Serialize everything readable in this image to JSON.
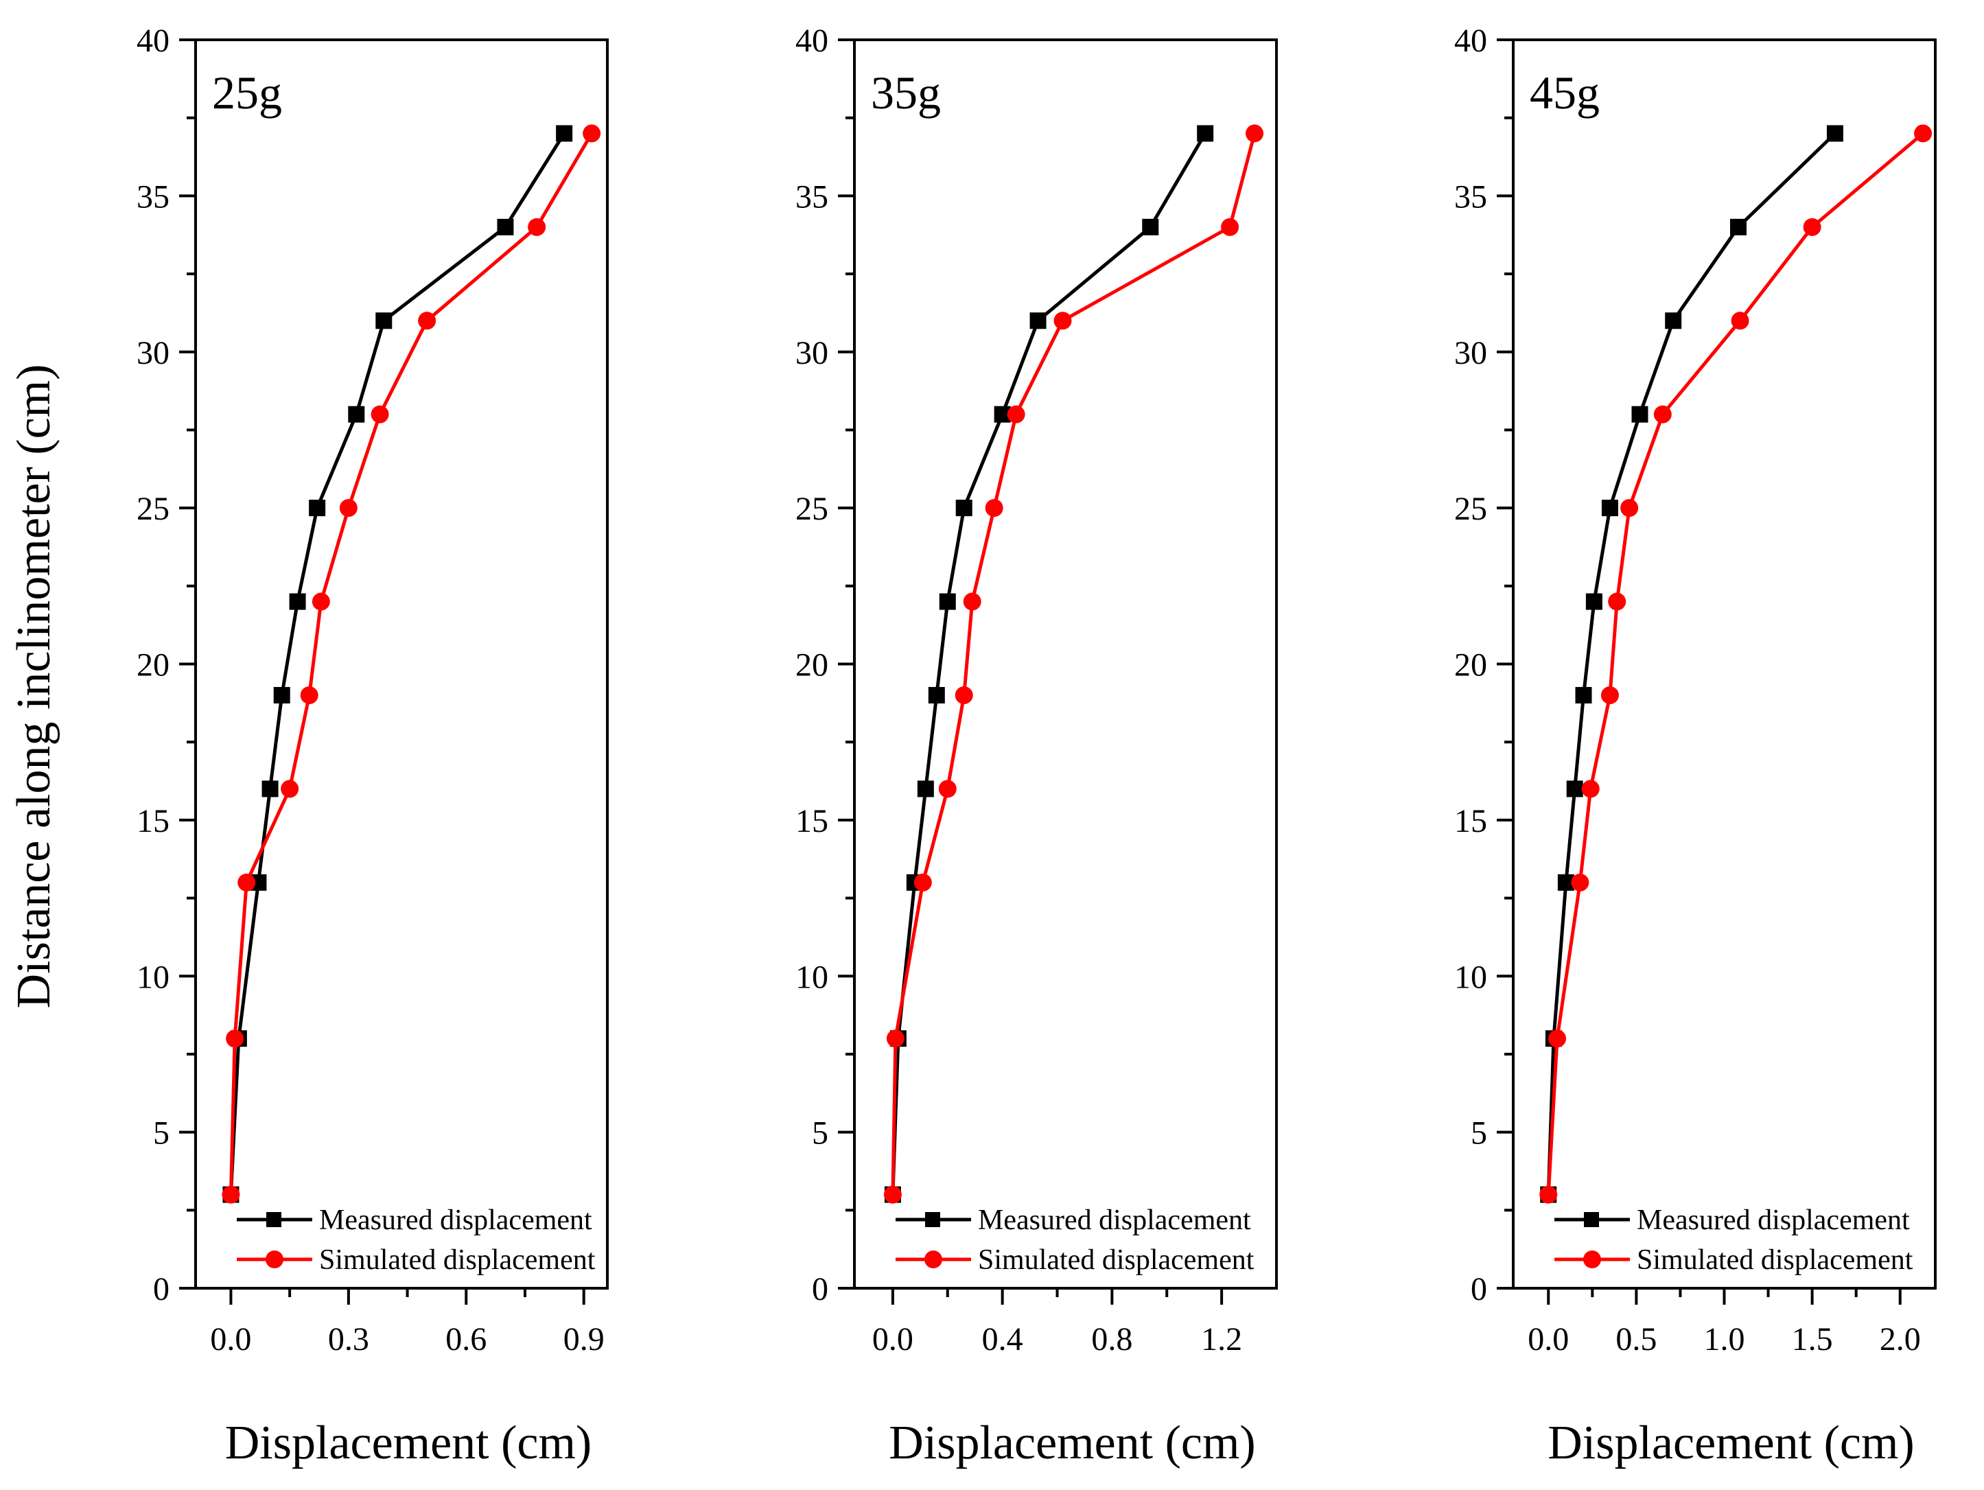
{
  "chart_data": [
    {
      "type": "line",
      "panel_label": "25g",
      "xlabel": "Displacement (cm)",
      "ylabel": "Distance along inclinometer (cm)",
      "xlim": [
        -0.09,
        0.96
      ],
      "ylim": [
        0,
        40
      ],
      "x_ticks": [
        "0.0",
        "0.3",
        "0.6",
        "0.9"
      ],
      "x_tick_values": [
        0,
        0.3,
        0.6,
        0.9
      ],
      "y_ticks": [
        "0",
        "5",
        "10",
        "15",
        "20",
        "25",
        "30",
        "35",
        "40"
      ],
      "y_tick_values": [
        0,
        5,
        10,
        15,
        20,
        25,
        30,
        35,
        40
      ],
      "legend_position": "bottom-right",
      "series": [
        {
          "name": "Measured displacement",
          "color": "#000000",
          "marker": "square",
          "points": [
            [
              0.0,
              3
            ],
            [
              0.02,
              8
            ],
            [
              0.07,
              13
            ],
            [
              0.1,
              16
            ],
            [
              0.13,
              19
            ],
            [
              0.17,
              22
            ],
            [
              0.22,
              25
            ],
            [
              0.32,
              28
            ],
            [
              0.39,
              31
            ],
            [
              0.7,
              34
            ],
            [
              0.85,
              37
            ]
          ]
        },
        {
          "name": "Simulated displacement",
          "color": "#ff0000",
          "marker": "circle",
          "points": [
            [
              0.0,
              3
            ],
            [
              0.01,
              8
            ],
            [
              0.04,
              13
            ],
            [
              0.15,
              16
            ],
            [
              0.2,
              19
            ],
            [
              0.23,
              22
            ],
            [
              0.3,
              25
            ],
            [
              0.38,
              28
            ],
            [
              0.5,
              31
            ],
            [
              0.78,
              34
            ],
            [
              0.92,
              37
            ]
          ]
        }
      ]
    },
    {
      "type": "line",
      "panel_label": "35g",
      "xlabel": "Displacement (cm)",
      "ylabel": "",
      "xlim": [
        -0.14,
        1.4
      ],
      "ylim": [
        0,
        40
      ],
      "x_ticks": [
        "0.0",
        "0.4",
        "0.8",
        "1.2"
      ],
      "x_tick_values": [
        0,
        0.4,
        0.8,
        1.2
      ],
      "y_ticks": [
        "0",
        "5",
        "10",
        "15",
        "20",
        "25",
        "30",
        "35",
        "40"
      ],
      "y_tick_values": [
        0,
        5,
        10,
        15,
        20,
        25,
        30,
        35,
        40
      ],
      "legend_position": "bottom-right",
      "series": [
        {
          "name": "Measured displacement",
          "color": "#000000",
          "marker": "square",
          "points": [
            [
              0.0,
              3
            ],
            [
              0.02,
              8
            ],
            [
              0.08,
              13
            ],
            [
              0.12,
              16
            ],
            [
              0.16,
              19
            ],
            [
              0.2,
              22
            ],
            [
              0.26,
              25
            ],
            [
              0.4,
              28
            ],
            [
              0.53,
              31
            ],
            [
              0.94,
              34
            ],
            [
              1.14,
              37
            ]
          ]
        },
        {
          "name": "Simulated displacement",
          "color": "#ff0000",
          "marker": "circle",
          "points": [
            [
              0.0,
              3
            ],
            [
              0.01,
              8
            ],
            [
              0.11,
              13
            ],
            [
              0.2,
              16
            ],
            [
              0.26,
              19
            ],
            [
              0.29,
              22
            ],
            [
              0.37,
              25
            ],
            [
              0.45,
              28
            ],
            [
              0.62,
              31
            ],
            [
              1.23,
              34
            ],
            [
              1.32,
              37
            ]
          ]
        }
      ]
    },
    {
      "type": "line",
      "panel_label": "45g",
      "xlabel": "Displacement (cm)",
      "ylabel": "",
      "xlim": [
        -0.2,
        2.2
      ],
      "ylim": [
        0,
        40
      ],
      "x_ticks": [
        "0.0",
        "0.5",
        "1.0",
        "1.5",
        "2.0"
      ],
      "x_tick_values": [
        0,
        0.5,
        1.0,
        1.5,
        2.0
      ],
      "y_ticks": [
        "0",
        "5",
        "10",
        "15",
        "20",
        "25",
        "30",
        "35",
        "40"
      ],
      "y_tick_values": [
        0,
        5,
        10,
        15,
        20,
        25,
        30,
        35,
        40
      ],
      "legend_position": "bottom-right",
      "series": [
        {
          "name": "Measured displacement",
          "color": "#000000",
          "marker": "square",
          "points": [
            [
              0.0,
              3
            ],
            [
              0.03,
              8
            ],
            [
              0.1,
              13
            ],
            [
              0.15,
              16
            ],
            [
              0.2,
              19
            ],
            [
              0.26,
              22
            ],
            [
              0.35,
              25
            ],
            [
              0.52,
              28
            ],
            [
              0.71,
              31
            ],
            [
              1.08,
              34
            ],
            [
              1.63,
              37
            ]
          ]
        },
        {
          "name": "Simulated displacement",
          "color": "#ff0000",
          "marker": "circle",
          "points": [
            [
              0.0,
              3
            ],
            [
              0.05,
              8
            ],
            [
              0.18,
              13
            ],
            [
              0.24,
              16
            ],
            [
              0.35,
              19
            ],
            [
              0.39,
              22
            ],
            [
              0.46,
              25
            ],
            [
              0.65,
              28
            ],
            [
              1.09,
              31
            ],
            [
              1.5,
              34
            ],
            [
              2.13,
              37
            ]
          ]
        }
      ]
    }
  ]
}
